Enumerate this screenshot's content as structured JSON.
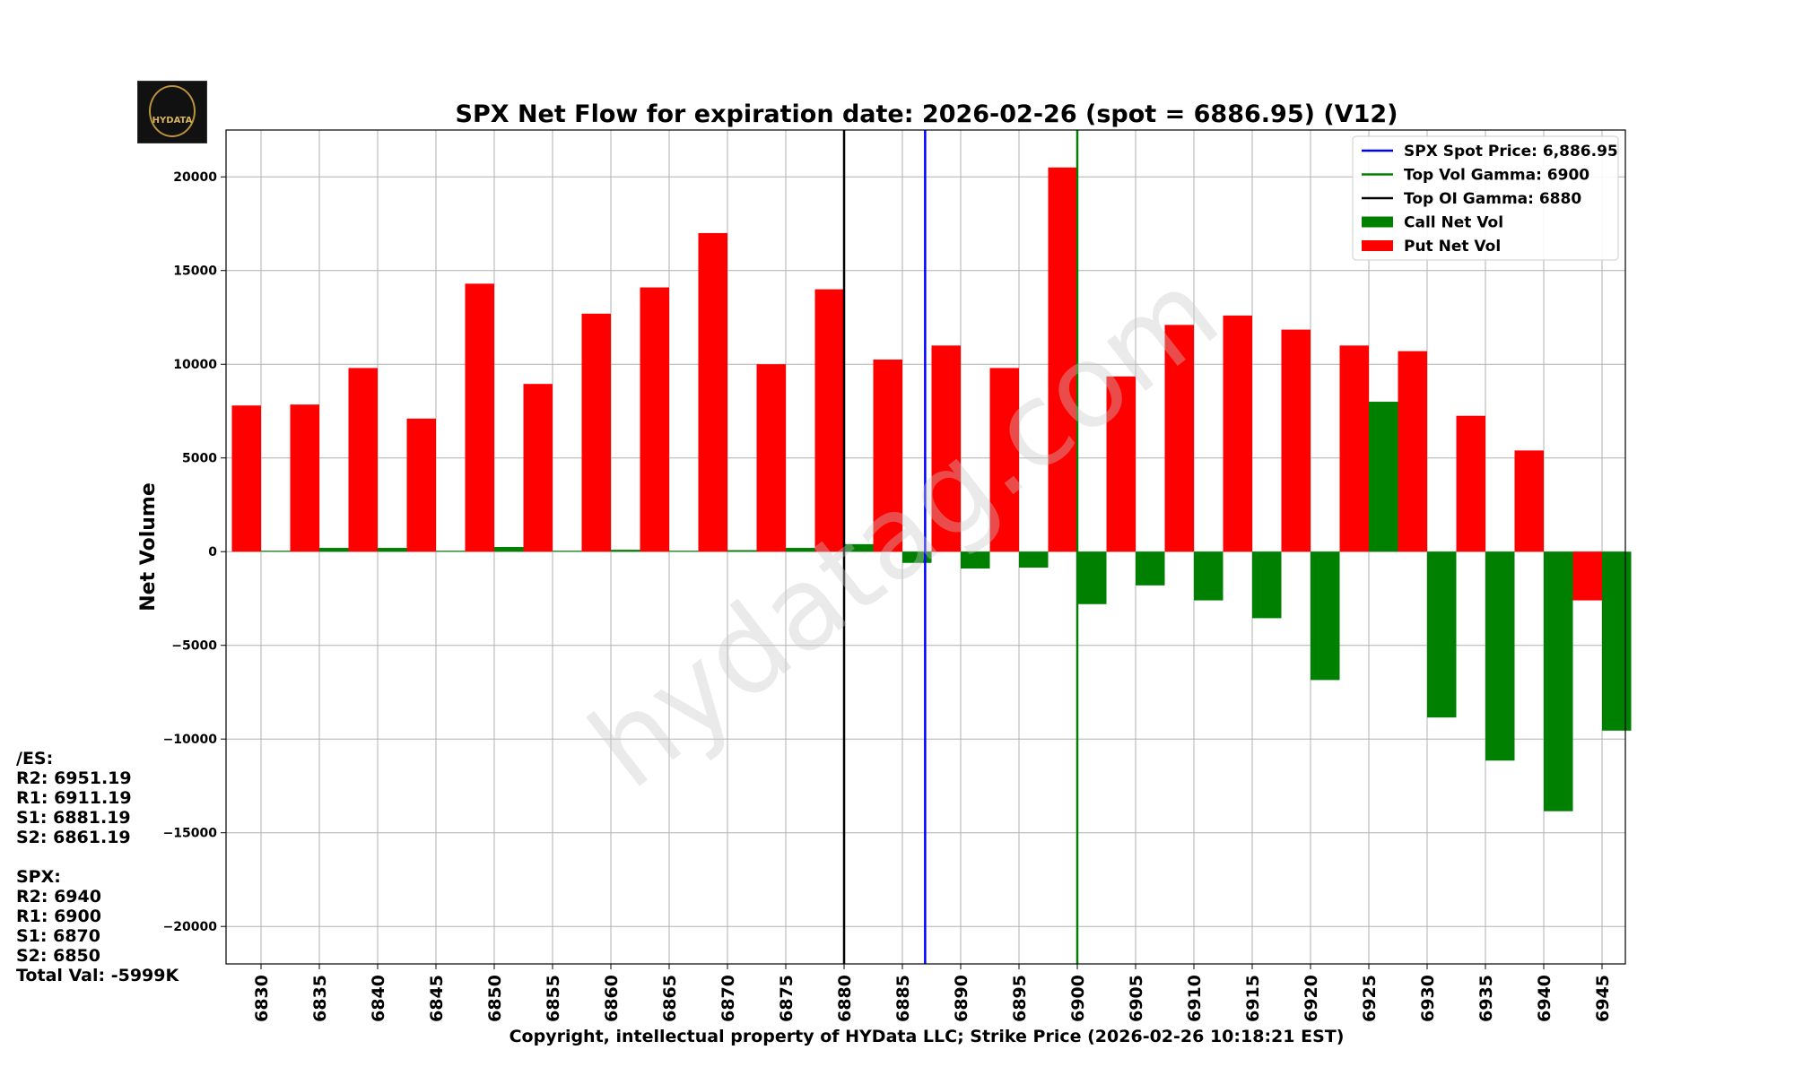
{
  "chart_data": {
    "type": "bar",
    "title": "SPX Net Flow for expiration date: 2026-02-26 (spot = 6886.95) (V12)",
    "xlabel": "Copyright, intellectual property of HYData LLC; Strike Price (2026-02-26 10:18:21 EST)",
    "ylabel": "Net Volume",
    "ylim": [
      -22000,
      22500
    ],
    "xlim": [
      6827,
      6947
    ],
    "yticks": [
      -20000,
      -15000,
      -10000,
      -5000,
      0,
      5000,
      10000,
      15000,
      20000
    ],
    "ytick_labels": [
      "−20000",
      "−15000",
      "−10000",
      "−5000",
      "0",
      "5000",
      "10000",
      "15000",
      "20000"
    ],
    "categories": [
      "6830",
      "6835",
      "6840",
      "6845",
      "6850",
      "6855",
      "6860",
      "6865",
      "6870",
      "6875",
      "6880",
      "6885",
      "6890",
      "6895",
      "6900",
      "6905",
      "6910",
      "6915",
      "6920",
      "6925",
      "6930",
      "6935",
      "6940",
      "6945"
    ],
    "strikes": [
      6830,
      6835,
      6840,
      6845,
      6850,
      6855,
      6860,
      6865,
      6870,
      6875,
      6880,
      6885,
      6890,
      6895,
      6900,
      6905,
      6910,
      6915,
      6920,
      6925,
      6930,
      6935,
      6940,
      6945
    ],
    "series": [
      {
        "name": "Put Net Vol",
        "color": "#ff0000",
        "offset": -1.25,
        "values": [
          7800,
          7850,
          9800,
          7100,
          14300,
          8950,
          12700,
          14100,
          17000,
          10000,
          14000,
          10250,
          11000,
          9800,
          20500,
          9350,
          12100,
          12600,
          11850,
          11000,
          10700,
          7250,
          5400,
          -2600
        ]
      },
      {
        "name": "Call Net Vol",
        "color": "#008000",
        "offset": 1.25,
        "values": [
          50,
          200,
          200,
          50,
          250,
          50,
          100,
          50,
          80,
          200,
          400,
          -600,
          -900,
          -850,
          -2800,
          -1800,
          -2600,
          -3550,
          -6850,
          8000,
          -8850,
          -11150,
          -13850,
          -9550
        ]
      }
    ],
    "lines": [
      {
        "name": "SPX Spot Price: 6,886.95",
        "x": 6886.95,
        "color": "#0000ff"
      },
      {
        "name": "Top Vol Gamma: 6900",
        "x": 6900,
        "color": "#008000"
      },
      {
        "name": "Top OI Gamma: 6880",
        "x": 6880,
        "color": "#000000"
      }
    ],
    "legend": [
      "SPX Spot Price: 6,886.95",
      "Top Vol Gamma: 6900",
      "Top OI Gamma: 6880",
      "Call Net Vol",
      "Put Net Vol"
    ],
    "legend_position": "top-right",
    "grid": true,
    "watermark": "hydatag.com"
  },
  "logo": {
    "text": "HYDATA"
  },
  "side_notes": {
    "es_header": "/ES:",
    "es_r2": "R2: 6951.19",
    "es_r1": "R1: 6911.19",
    "es_s1": "S1: 6881.19",
    "es_s2": "S2: 6861.19",
    "spx_header": "SPX:",
    "spx_r2": "R2: 6940",
    "spx_r1": "R1: 6900",
    "spx_s1": "S1: 6870",
    "spx_s2": "S2: 6850",
    "total": "Total Val: -5999K"
  }
}
